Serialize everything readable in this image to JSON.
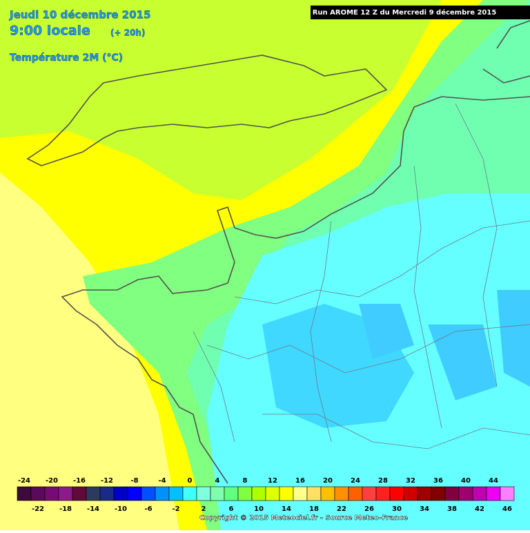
{
  "header": {
    "date": "Jeudi 10 décembre 2015",
    "time": "9:00 locale",
    "lead": "(+ 20h)",
    "parameter": "Température 2M (°C)",
    "run": "Run AROME 12 Z du Mercredi 9 décembre 2015"
  },
  "legend": {
    "ticks": [
      -24,
      -22,
      -20,
      -18,
      -16,
      -14,
      -12,
      -10,
      -8,
      -6,
      -4,
      -2,
      0,
      2,
      4,
      6,
      8,
      10,
      12,
      14,
      16,
      18,
      20,
      22,
      24,
      26,
      28,
      30,
      32,
      34,
      36,
      38,
      40,
      42,
      44,
      46
    ],
    "colors": [
      "#3c0a3c",
      "#5a0a5a",
      "#780a78",
      "#8c1a8c",
      "#600a3c",
      "#2b3a60",
      "#1a2a8a",
      "#0000c8",
      "#0000ff",
      "#0050ff",
      "#0090ff",
      "#00c0ff",
      "#40ffff",
      "#80ffdc",
      "#80ffb0",
      "#60ff80",
      "#80ff40",
      "#b0ff00",
      "#e0ff00",
      "#ffff00",
      "#ffff90",
      "#ffe060",
      "#ffc000",
      "#ff9000",
      "#ff6000",
      "#ff4040",
      "#ff2020",
      "#ff0000",
      "#d00000",
      "#a00000",
      "#800000",
      "#800040",
      "#a00070",
      "#c000b0",
      "#f000f0",
      "#ff80ff"
    ]
  },
  "footer": {
    "copyright": "Copyright © 2015 Meteociel.fr - Source Meteo-France"
  }
}
